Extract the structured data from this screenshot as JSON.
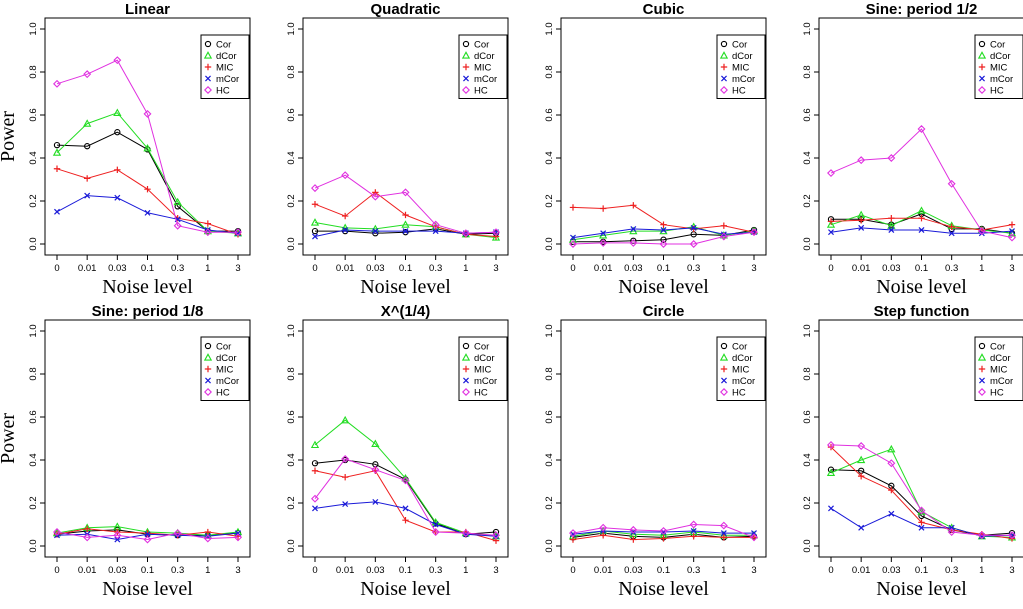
{
  "colors": {
    "Cor": "#000000",
    "dCor": "#22dd22",
    "MIC": "#ee2020",
    "mCor": "#1a1ad8",
    "HC": "#e030e0"
  },
  "chart_data": [
    {
      "type": "line",
      "title": "Linear",
      "xlabel": "Noise level",
      "ylabel": "Power",
      "categories": [
        "0",
        "0.01",
        "0.03",
        "0.1",
        "0.3",
        "1",
        "3"
      ],
      "yticks": [
        "0.0",
        "0.2",
        "0.4",
        "0.6",
        "0.8",
        "1.0"
      ],
      "ylim": [
        0,
        1
      ],
      "legend_position": "top-right",
      "series": [
        {
          "name": "Cor",
          "marker": "circle",
          "values": [
            0.46,
            0.455,
            0.52,
            0.44,
            0.175,
            0.06,
            0.06
          ]
        },
        {
          "name": "dCor",
          "marker": "triangle",
          "values": [
            0.425,
            0.56,
            0.61,
            0.445,
            0.195,
            0.06,
            0.05
          ]
        },
        {
          "name": "MIC",
          "marker": "plus",
          "values": [
            0.35,
            0.305,
            0.345,
            0.255,
            0.12,
            0.095,
            0.045
          ]
        },
        {
          "name": "mCor",
          "marker": "x",
          "values": [
            0.15,
            0.225,
            0.215,
            0.145,
            0.115,
            0.065,
            0.05
          ]
        },
        {
          "name": "HC",
          "marker": "diamond",
          "values": [
            0.745,
            0.79,
            0.855,
            0.605,
            0.085,
            0.055,
            0.055
          ]
        }
      ]
    },
    {
      "type": "line",
      "title": "Quadratic",
      "xlabel": "Noise level",
      "ylabel": "",
      "categories": [
        "0",
        "0.01",
        "0.03",
        "0.1",
        "0.3",
        "1",
        "3"
      ],
      "yticks": [
        "0.0",
        "0.2",
        "0.4",
        "0.6",
        "0.8",
        "1.0"
      ],
      "ylim": [
        0,
        1
      ],
      "legend_position": "top-right",
      "series": [
        {
          "name": "Cor",
          "marker": "circle",
          "values": [
            0.06,
            0.06,
            0.05,
            0.055,
            0.07,
            0.045,
            0.05
          ]
        },
        {
          "name": "dCor",
          "marker": "triangle",
          "values": [
            0.1,
            0.075,
            0.07,
            0.09,
            0.08,
            0.045,
            0.03
          ]
        },
        {
          "name": "MIC",
          "marker": "plus",
          "values": [
            0.185,
            0.13,
            0.24,
            0.135,
            0.08,
            0.045,
            0.035
          ]
        },
        {
          "name": "mCor",
          "marker": "x",
          "values": [
            0.035,
            0.065,
            0.06,
            0.06,
            0.06,
            0.05,
            0.055
          ]
        },
        {
          "name": "HC",
          "marker": "diamond",
          "values": [
            0.26,
            0.32,
            0.22,
            0.24,
            0.09,
            0.05,
            0.055
          ]
        }
      ]
    },
    {
      "type": "line",
      "title": "Cubic",
      "xlabel": "Noise level",
      "ylabel": "",
      "categories": [
        "0",
        "0.01",
        "0.03",
        "0.1",
        "0.3",
        "1",
        "3"
      ],
      "yticks": [
        "0.0",
        "0.2",
        "0.4",
        "0.6",
        "0.8",
        "1.0"
      ],
      "ylim": [
        0,
        1
      ],
      "legend_position": "top-right",
      "series": [
        {
          "name": "Cor",
          "marker": "circle",
          "values": [
            0.01,
            0.01,
            0.015,
            0.02,
            0.045,
            0.04,
            0.065
          ]
        },
        {
          "name": "dCor",
          "marker": "triangle",
          "values": [
            0.02,
            0.04,
            0.06,
            0.06,
            0.08,
            0.04,
            0.06
          ]
        },
        {
          "name": "MIC",
          "marker": "plus",
          "values": [
            0.17,
            0.165,
            0.18,
            0.09,
            0.07,
            0.085,
            0.055
          ]
        },
        {
          "name": "mCor",
          "marker": "x",
          "values": [
            0.03,
            0.05,
            0.07,
            0.065,
            0.075,
            0.045,
            0.055
          ]
        },
        {
          "name": "HC",
          "marker": "diamond",
          "values": [
            0.0,
            0.005,
            0.005,
            0.0,
            0.0,
            0.035,
            0.055
          ]
        }
      ]
    },
    {
      "type": "line",
      "title": "Sine: period 1/2",
      "xlabel": "Noise level",
      "ylabel": "",
      "categories": [
        "0",
        "0.01",
        "0.03",
        "0.1",
        "0.3",
        "1",
        "3"
      ],
      "yticks": [
        "0.0",
        "0.2",
        "0.4",
        "0.6",
        "0.8",
        "1.0"
      ],
      "ylim": [
        0,
        1
      ],
      "legend_position": "top-right",
      "series": [
        {
          "name": "Cor",
          "marker": "circle",
          "values": [
            0.115,
            0.115,
            0.09,
            0.14,
            0.07,
            0.07,
            0.05
          ]
        },
        {
          "name": "dCor",
          "marker": "triangle",
          "values": [
            0.09,
            0.135,
            0.085,
            0.155,
            0.085,
            0.065,
            0.05
          ]
        },
        {
          "name": "MIC",
          "marker": "plus",
          "values": [
            0.105,
            0.11,
            0.12,
            0.12,
            0.08,
            0.065,
            0.09
          ]
        },
        {
          "name": "mCor",
          "marker": "x",
          "values": [
            0.055,
            0.075,
            0.065,
            0.065,
            0.05,
            0.05,
            0.06
          ]
        },
        {
          "name": "HC",
          "marker": "diamond",
          "values": [
            0.33,
            0.39,
            0.4,
            0.535,
            0.28,
            0.06,
            0.03
          ]
        }
      ]
    },
    {
      "type": "line",
      "title": "Sine: period 1/8",
      "xlabel": "Noise level",
      "ylabel": "Power",
      "categories": [
        "0",
        "0.01",
        "0.03",
        "0.1",
        "0.3",
        "1",
        "3"
      ],
      "yticks": [
        "0.0",
        "0.2",
        "0.4",
        "0.6",
        "0.8",
        "1.0"
      ],
      "ylim": [
        0,
        1
      ],
      "legend_position": "top-right",
      "series": [
        {
          "name": "Cor",
          "marker": "circle",
          "values": [
            0.055,
            0.07,
            0.075,
            0.055,
            0.05,
            0.05,
            0.06
          ]
        },
        {
          "name": "dCor",
          "marker": "triangle",
          "values": [
            0.06,
            0.085,
            0.09,
            0.065,
            0.06,
            0.05,
            0.065
          ]
        },
        {
          "name": "MIC",
          "marker": "plus",
          "values": [
            0.055,
            0.08,
            0.065,
            0.06,
            0.05,
            0.065,
            0.045
          ]
        },
        {
          "name": "mCor",
          "marker": "x",
          "values": [
            0.05,
            0.055,
            0.03,
            0.055,
            0.05,
            0.045,
            0.06
          ]
        },
        {
          "name": "HC",
          "marker": "diamond",
          "values": [
            0.065,
            0.04,
            0.05,
            0.03,
            0.06,
            0.035,
            0.04
          ]
        }
      ]
    },
    {
      "type": "line",
      "title": "X^(1/4)",
      "xlabel": "Noise level",
      "ylabel": "",
      "categories": [
        "0",
        "0.01",
        "0.03",
        "0.1",
        "0.3",
        "1",
        "3"
      ],
      "yticks": [
        "0.0",
        "0.2",
        "0.4",
        "0.6",
        "0.8",
        "1.0"
      ],
      "ylim": [
        0,
        1
      ],
      "legend_position": "top-right",
      "series": [
        {
          "name": "Cor",
          "marker": "circle",
          "values": [
            0.385,
            0.4,
            0.38,
            0.31,
            0.105,
            0.055,
            0.065
          ]
        },
        {
          "name": "dCor",
          "marker": "triangle",
          "values": [
            0.47,
            0.585,
            0.475,
            0.315,
            0.11,
            0.06,
            0.045
          ]
        },
        {
          "name": "MIC",
          "marker": "plus",
          "values": [
            0.35,
            0.32,
            0.35,
            0.12,
            0.065,
            0.065,
            0.025
          ]
        },
        {
          "name": "mCor",
          "marker": "x",
          "values": [
            0.175,
            0.195,
            0.205,
            0.175,
            0.1,
            0.055,
            0.045
          ]
        },
        {
          "name": "HC",
          "marker": "diamond",
          "values": [
            0.22,
            0.405,
            0.355,
            0.305,
            0.065,
            0.06,
            0.05
          ]
        }
      ]
    },
    {
      "type": "line",
      "title": "Circle",
      "xlabel": "Noise level",
      "ylabel": "",
      "categories": [
        "0",
        "0.01",
        "0.03",
        "0.1",
        "0.3",
        "1",
        "3"
      ],
      "yticks": [
        "0.0",
        "0.2",
        "0.4",
        "0.6",
        "0.8",
        "1.0"
      ],
      "ylim": [
        0,
        1
      ],
      "legend_position": "top-right",
      "series": [
        {
          "name": "Cor",
          "marker": "circle",
          "values": [
            0.04,
            0.06,
            0.045,
            0.04,
            0.055,
            0.04,
            0.045
          ]
        },
        {
          "name": "dCor",
          "marker": "triangle",
          "values": [
            0.045,
            0.07,
            0.055,
            0.05,
            0.065,
            0.05,
            0.05
          ]
        },
        {
          "name": "MIC",
          "marker": "plus",
          "values": [
            0.03,
            0.05,
            0.03,
            0.035,
            0.045,
            0.04,
            0.04
          ]
        },
        {
          "name": "mCor",
          "marker": "x",
          "values": [
            0.055,
            0.07,
            0.065,
            0.065,
            0.07,
            0.06,
            0.06
          ]
        },
        {
          "name": "HC",
          "marker": "diamond",
          "values": [
            0.06,
            0.085,
            0.075,
            0.07,
            0.1,
            0.095,
            0.04
          ]
        }
      ]
    },
    {
      "type": "line",
      "title": "Step function",
      "xlabel": "Noise level",
      "ylabel": "",
      "categories": [
        "0",
        "0.01",
        "0.03",
        "0.1",
        "0.3",
        "1",
        "3"
      ],
      "yticks": [
        "0.0",
        "0.2",
        "0.4",
        "0.6",
        "0.8",
        "1.0"
      ],
      "ylim": [
        0,
        1
      ],
      "legend_position": "top-right",
      "series": [
        {
          "name": "Cor",
          "marker": "circle",
          "values": [
            0.355,
            0.35,
            0.28,
            0.14,
            0.075,
            0.05,
            0.06
          ]
        },
        {
          "name": "dCor",
          "marker": "triangle",
          "values": [
            0.34,
            0.4,
            0.45,
            0.16,
            0.085,
            0.045,
            0.04
          ]
        },
        {
          "name": "MIC",
          "marker": "plus",
          "values": [
            0.46,
            0.325,
            0.26,
            0.11,
            0.075,
            0.055,
            0.035
          ]
        },
        {
          "name": "mCor",
          "marker": "x",
          "values": [
            0.175,
            0.085,
            0.15,
            0.085,
            0.085,
            0.045,
            0.05
          ]
        },
        {
          "name": "HC",
          "marker": "diamond",
          "values": [
            0.47,
            0.465,
            0.385,
            0.165,
            0.065,
            0.05,
            0.05
          ]
        }
      ]
    }
  ]
}
